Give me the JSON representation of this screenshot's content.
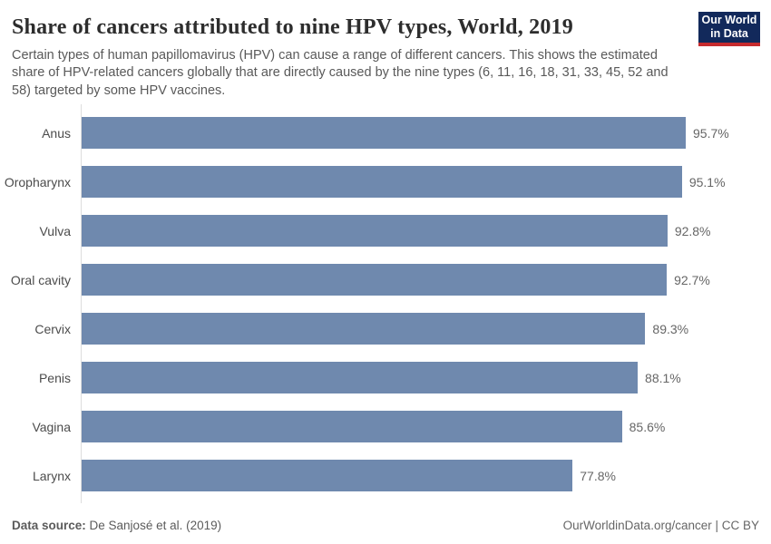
{
  "header": {
    "title": "Share of cancers attributed to nine HPV types, World, 2019",
    "subtitle": "Certain types of human papillomavirus (HPV) can cause a range of different cancers. This shows the estimated share of HPV-related cancers globally that are directly caused by the nine types (6, 11, 16, 18, 31, 33, 45, 52 and 58) targeted by some HPV vaccines.",
    "logo": {
      "line1": "Our World",
      "line2": "in Data",
      "bg_color": "#12295b",
      "stripe_color": "#c62b2e",
      "text_color": "#ffffff"
    }
  },
  "chart_data": {
    "type": "bar",
    "orientation": "horizontal",
    "title": "Share of cancers attributed to nine HPV types, World, 2019",
    "categories": [
      "Anus",
      "Oropharynx",
      "Vulva",
      "Oral cavity",
      "Cervix",
      "Penis",
      "Vagina",
      "Larynx"
    ],
    "values": [
      95.7,
      95.1,
      92.8,
      92.7,
      89.3,
      88.1,
      85.6,
      77.8
    ],
    "value_labels": [
      "95.7%",
      "95.1%",
      "92.8%",
      "92.7%",
      "89.3%",
      "88.1%",
      "85.6%",
      "77.8%"
    ],
    "value_suffix": "%",
    "xlim": [
      0,
      100
    ],
    "grid": false,
    "legend": "none",
    "bar_color": "#6f89ae",
    "axis_line_color": "#dddddd",
    "label_color": "#4c4c4c",
    "value_label_color": "#666666"
  },
  "footer": {
    "datasource_label": "Data source:",
    "datasource_value": " De Sanjosé et al. (2019)",
    "credit": "OurWorldinData.org/cancer | CC BY"
  }
}
